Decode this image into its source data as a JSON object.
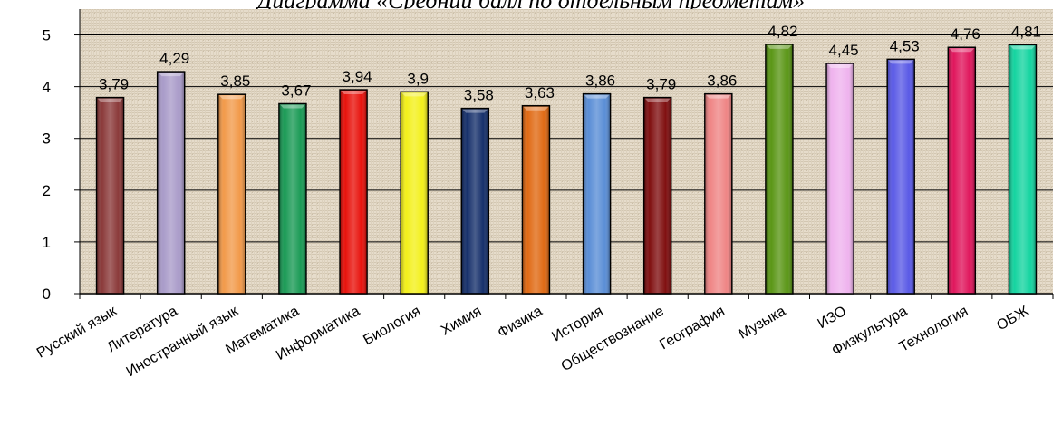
{
  "chart_data": {
    "type": "bar",
    "title": "Диаграмма «Средний балл по отдельным предметам»",
    "categories": [
      "Русский язык",
      "Литература",
      "Иностранный язык",
      "Математика",
      "Информатика",
      "Биология",
      "Химия",
      "Физика",
      "История",
      "Обществознание",
      "География",
      "Музыка",
      "ИЗО",
      "Физкультура",
      "Технология",
      "ОБЖ"
    ],
    "values": [
      3.79,
      4.29,
      3.85,
      3.67,
      3.94,
      3.9,
      3.58,
      3.63,
      3.86,
      3.79,
      3.86,
      4.82,
      4.45,
      4.53,
      4.76,
      4.81
    ],
    "value_labels": [
      "3,79",
      "4,29",
      "3,85",
      "3,67",
      "3,94",
      "3,9",
      "3,58",
      "3,63",
      "3,86",
      "3,79",
      "3,86",
      "4,82",
      "4,45",
      "4,53",
      "4,76",
      "4,81"
    ],
    "yticks": [
      "0",
      "1",
      "2",
      "3",
      "4",
      "5"
    ],
    "ylim": [
      0,
      5.5
    ],
    "xlabel": "",
    "ylabel": "",
    "grid": true,
    "legend": "none",
    "colors": [
      "#8b3a3a",
      "#a99bc9",
      "#f29a4a",
      "#1a9a55",
      "#e8120c",
      "#f3f01a",
      "#16306b",
      "#e06a14",
      "#5a8ed6",
      "#800f10",
      "#ef8585",
      "#5a9616",
      "#efb3ee",
      "#5a5ae6",
      "#e0165c",
      "#14d4a0"
    ],
    "background_color": "#e6dccb"
  }
}
